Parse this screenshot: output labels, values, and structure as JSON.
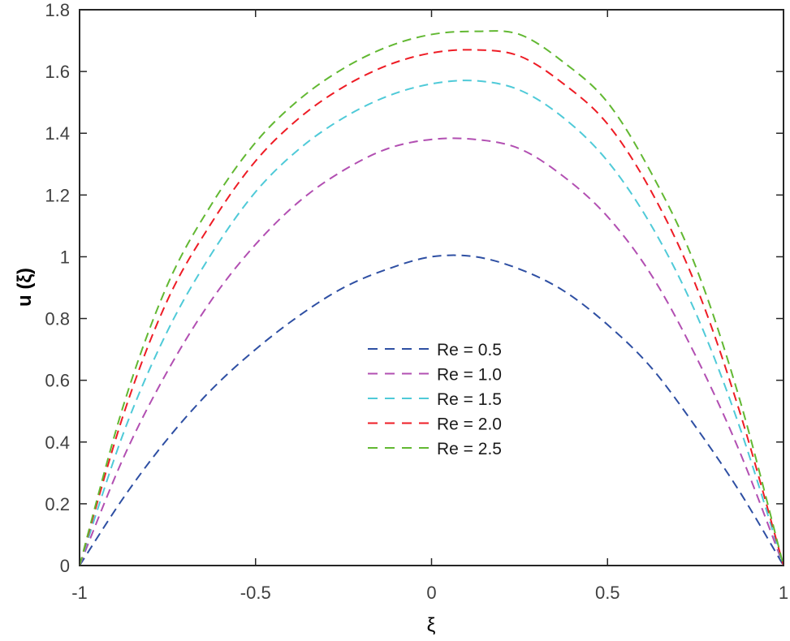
{
  "chart_data": {
    "type": "line",
    "title": "",
    "xlabel": "ξ",
    "ylabel": "u (ξ)",
    "xlim": [
      -1,
      1
    ],
    "ylim": [
      0,
      1.8
    ],
    "xticks": [
      -1,
      -0.5,
      0,
      0.5,
      1
    ],
    "xtick_labels": [
      "-1",
      "-0.5",
      "0",
      "0.5",
      "1"
    ],
    "yticks": [
      0,
      0.2,
      0.4,
      0.6,
      0.8,
      1.0,
      1.2,
      1.4,
      1.6,
      1.8
    ],
    "ytick_labels": [
      "0",
      "0.2",
      "0.4",
      "0.6",
      "0.8",
      "1",
      "1.2",
      "1.4",
      "1.6",
      "1.8"
    ],
    "grid": false,
    "legend_position": "center",
    "line_style": "dashed",
    "x": [
      -1,
      -0.875,
      -0.75,
      -0.625,
      -0.5,
      -0.375,
      -0.25,
      -0.125,
      0,
      0.125,
      0.25,
      0.375,
      0.5,
      0.625,
      0.75,
      0.875,
      1
    ],
    "series": [
      {
        "name": "Re = 0.5",
        "color": "#2e4fa3",
        "values": [
          0,
          0.22,
          0.41,
          0.57,
          0.7,
          0.81,
          0.9,
          0.96,
          1.0,
          1.0,
          0.96,
          0.89,
          0.78,
          0.64,
          0.45,
          0.24,
          0
        ]
      },
      {
        "name": "Re = 1.0",
        "color": "#b24fb2",
        "values": [
          0,
          0.35,
          0.63,
          0.86,
          1.04,
          1.18,
          1.28,
          1.35,
          1.38,
          1.38,
          1.35,
          1.26,
          1.13,
          0.94,
          0.68,
          0.37,
          0
        ]
      },
      {
        "name": "Re = 1.5",
        "color": "#4fcad8",
        "values": [
          0,
          0.43,
          0.76,
          1.01,
          1.21,
          1.35,
          1.45,
          1.52,
          1.56,
          1.57,
          1.54,
          1.45,
          1.31,
          1.1,
          0.82,
          0.45,
          0
        ]
      },
      {
        "name": "Re = 2.0",
        "color": "#ee1c25",
        "values": [
          0,
          0.49,
          0.86,
          1.11,
          1.31,
          1.45,
          1.55,
          1.62,
          1.66,
          1.67,
          1.65,
          1.56,
          1.43,
          1.21,
          0.91,
          0.5,
          0
        ]
      },
      {
        "name": "Re = 2.5",
        "color": "#62b832",
        "values": [
          0,
          0.52,
          0.91,
          1.17,
          1.37,
          1.51,
          1.61,
          1.68,
          1.72,
          1.73,
          1.72,
          1.63,
          1.5,
          1.27,
          0.97,
          0.54,
          0
        ]
      }
    ]
  },
  "legend": {
    "items": [
      {
        "label": "Re = 0.5",
        "color": "#2e4fa3"
      },
      {
        "label": "Re = 1.0",
        "color": "#b24fb2"
      },
      {
        "label": "Re = 1.5",
        "color": "#4fcad8"
      },
      {
        "label": "Re = 2.0",
        "color": "#ee1c25"
      },
      {
        "label": "Re = 2.5",
        "color": "#62b832"
      }
    ]
  },
  "axes": {
    "x_label": "ξ",
    "y_label": "u (ξ)"
  }
}
